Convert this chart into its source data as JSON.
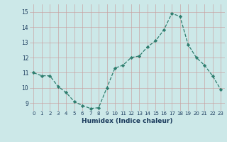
{
  "x": [
    0,
    1,
    2,
    3,
    4,
    5,
    6,
    7,
    8,
    9,
    10,
    11,
    12,
    13,
    14,
    15,
    16,
    17,
    18,
    19,
    20,
    21,
    22,
    23
  ],
  "y": [
    11.0,
    10.8,
    10.8,
    10.1,
    9.7,
    9.1,
    8.85,
    8.65,
    8.7,
    10.0,
    11.3,
    11.5,
    12.0,
    12.1,
    12.7,
    13.1,
    13.8,
    14.9,
    14.7,
    12.85,
    12.0,
    11.5,
    10.8,
    9.9
  ],
  "line_color": "#2e7d6e",
  "marker_color": "#2e7d6e",
  "bg_color": "#cce8e8",
  "grid_color_h": "#d4a0a0",
  "grid_color_v": "#d4a0a0",
  "xlabel": "Humidex (Indice chaleur)",
  "ylim": [
    8.5,
    15.5
  ],
  "xlim": [
    -0.5,
    23.5
  ],
  "yticks": [
    9,
    10,
    11,
    12,
    13,
    14,
    15
  ],
  "xticks": [
    0,
    1,
    2,
    3,
    4,
    5,
    6,
    7,
    8,
    9,
    10,
    11,
    12,
    13,
    14,
    15,
    16,
    17,
    18,
    19,
    20,
    21,
    22,
    23
  ]
}
